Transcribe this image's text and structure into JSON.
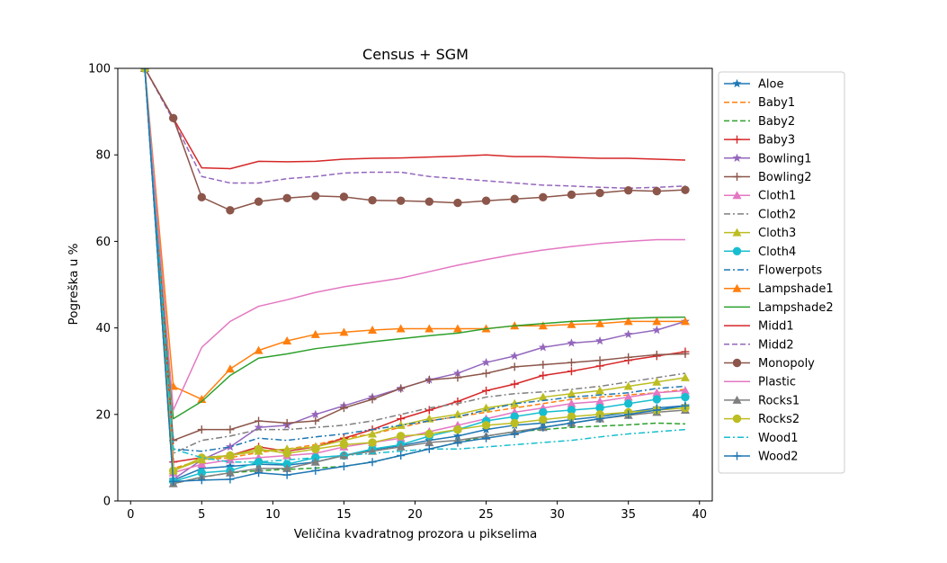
{
  "chart_data": {
    "type": "line",
    "title": "Census + SGM",
    "xlabel": "Veličina kvadratnog prozora u pikselima",
    "ylabel": "Pogreška u %",
    "xlim": [
      -0.9,
      40.9
    ],
    "ylim": [
      0,
      100
    ],
    "xticks": [
      0,
      5,
      10,
      15,
      20,
      25,
      30,
      35,
      40
    ],
    "yticks": [
      0,
      20,
      40,
      60,
      80,
      100
    ],
    "grid": false,
    "legend_position": "right",
    "x": [
      1,
      3,
      5,
      7,
      9,
      11,
      13,
      15,
      17,
      19,
      21,
      23,
      25,
      27,
      29,
      31,
      33,
      35,
      37,
      39
    ],
    "series": [
      {
        "name": "Aloe",
        "color": "#1f77b4",
        "linestyle": "solid",
        "marker": "star",
        "values": [
          100,
          4.8,
          7.5,
          8.0,
          8.5,
          8.3,
          9.0,
          10.5,
          11.8,
          12.8,
          14.0,
          15.0,
          16.5,
          17.5,
          18.0,
          18.8,
          19.5,
          20.5,
          21.5,
          22.0
        ]
      },
      {
        "name": "Baby1",
        "color": "#ff7f0e",
        "linestyle": "dashed",
        "marker": "none",
        "values": [
          100,
          7.5,
          9.5,
          10.0,
          11.2,
          12.0,
          13.0,
          14.5,
          15.5,
          17.0,
          18.5,
          19.5,
          20.5,
          21.5,
          22.5,
          23.5,
          24.0,
          24.5,
          25.0,
          25.8
        ]
      },
      {
        "name": "Baby2",
        "color": "#2ca02c",
        "linestyle": "dashed",
        "marker": "none",
        "values": [
          100,
          4.0,
          5.5,
          6.5,
          7.0,
          7.3,
          7.6,
          8.0,
          9.0,
          10.5,
          12.0,
          13.5,
          15.0,
          16.0,
          16.5,
          17.0,
          17.3,
          17.6,
          18.0,
          17.8
        ]
      },
      {
        "name": "Baby3",
        "color": "#d62728",
        "linestyle": "solid",
        "marker": "plus",
        "values": [
          100,
          9.0,
          10.0,
          10.5,
          12.5,
          11.5,
          12.5,
          14.5,
          16.5,
          19.0,
          21.0,
          23.0,
          25.5,
          27.0,
          29.0,
          30.0,
          31.2,
          32.5,
          33.5,
          34.5
        ]
      },
      {
        "name": "Bowling1",
        "color": "#9467bd",
        "linestyle": "solid",
        "marker": "star",
        "values": [
          100,
          5.0,
          9.5,
          12.5,
          17.0,
          17.5,
          20.0,
          22.0,
          24.0,
          26.0,
          28.0,
          29.5,
          32.0,
          33.5,
          35.5,
          36.5,
          37.0,
          38.5,
          39.5,
          41.5
        ]
      },
      {
        "name": "Bowling2",
        "color": "#8c564b",
        "linestyle": "solid",
        "marker": "plus",
        "values": [
          100,
          14.0,
          16.5,
          16.5,
          18.5,
          18.0,
          18.5,
          21.5,
          23.5,
          26.0,
          28.0,
          28.5,
          29.5,
          31.0,
          31.5,
          32.0,
          32.5,
          33.2,
          33.8,
          34.0
        ]
      },
      {
        "name": "Cloth1",
        "color": "#e377c2",
        "linestyle": "solid",
        "marker": "triangle",
        "values": [
          100,
          6.5,
          8.5,
          9.5,
          10.0,
          10.5,
          11.0,
          12.5,
          13.5,
          14.5,
          16.0,
          17.5,
          19.0,
          20.5,
          21.5,
          22.5,
          23.0,
          24.0,
          25.0,
          25.5
        ]
      },
      {
        "name": "Cloth2",
        "color": "#7f7f7f",
        "linestyle": "dashdot",
        "marker": "none",
        "values": [
          100,
          11.0,
          14.0,
          15.0,
          16.5,
          16.5,
          17.0,
          17.5,
          18.5,
          20.0,
          21.5,
          22.5,
          24.0,
          24.8,
          25.2,
          25.8,
          26.5,
          27.5,
          28.5,
          29.5
        ]
      },
      {
        "name": "Cloth3",
        "color": "#bcbd22",
        "linestyle": "solid",
        "marker": "triangle",
        "values": [
          100,
          7.0,
          9.5,
          10.5,
          11.5,
          12.0,
          12.5,
          14.0,
          15.5,
          17.5,
          19.0,
          20.0,
          21.5,
          22.5,
          24.0,
          24.8,
          25.5,
          26.5,
          27.5,
          28.5
        ]
      },
      {
        "name": "Cloth4",
        "color": "#17becf",
        "linestyle": "solid",
        "marker": "circle",
        "values": [
          100,
          4.5,
          6.5,
          7.0,
          9.0,
          8.5,
          10.0,
          10.5,
          12.0,
          13.0,
          15.0,
          16.5,
          18.5,
          19.5,
          20.5,
          21.0,
          21.5,
          22.5,
          23.5,
          24.0
        ]
      },
      {
        "name": "Flowerpots",
        "color": "#1f77b4",
        "linestyle": "dashdot",
        "marker": "none",
        "values": [
          100,
          12.0,
          11.5,
          12.5,
          14.5,
          14.0,
          14.8,
          15.5,
          16.5,
          17.5,
          18.5,
          19.5,
          21.0,
          22.5,
          23.2,
          24.0,
          24.5,
          25.0,
          26.0,
          26.5
        ]
      },
      {
        "name": "Lampshade1",
        "color": "#ff7f0e",
        "linestyle": "solid",
        "marker": "triangle",
        "values": [
          100,
          26.5,
          23.5,
          30.5,
          34.8,
          37.0,
          38.5,
          39.0,
          39.5,
          39.8,
          39.8,
          39.8,
          39.8,
          40.5,
          40.5,
          40.8,
          41.0,
          41.5,
          41.5,
          41.5
        ]
      },
      {
        "name": "Lampshade2",
        "color": "#2ca02c",
        "linestyle": "solid",
        "marker": "none",
        "values": [
          100,
          19.0,
          23.0,
          29.0,
          33.0,
          34.0,
          35.2,
          36.0,
          36.8,
          37.5,
          38.2,
          38.8,
          39.8,
          40.5,
          41.0,
          41.5,
          41.8,
          42.2,
          42.4,
          42.5
        ]
      },
      {
        "name": "Midd1",
        "color": "#d62728",
        "linestyle": "solid",
        "marker": "none",
        "values": [
          100,
          88.5,
          77.0,
          76.8,
          78.5,
          78.4,
          78.5,
          79.0,
          79.2,
          79.3,
          79.5,
          79.7,
          80.0,
          79.6,
          79.6,
          79.4,
          79.2,
          79.2,
          79.0,
          78.8
        ]
      },
      {
        "name": "Midd2",
        "color": "#9467bd",
        "linestyle": "dashed",
        "marker": "none",
        "values": [
          100,
          88.0,
          75.0,
          73.5,
          73.5,
          74.5,
          75.0,
          75.8,
          76.0,
          76.0,
          75.0,
          74.5,
          74.0,
          73.5,
          73.0,
          72.8,
          72.5,
          72.3,
          72.5,
          72.8
        ]
      },
      {
        "name": "Monopoly",
        "color": "#8c564b",
        "linestyle": "solid",
        "marker": "circle",
        "values": [
          100,
          88.5,
          70.2,
          67.2,
          69.2,
          70.0,
          70.5,
          70.3,
          69.5,
          69.4,
          69.2,
          68.9,
          69.4,
          69.8,
          70.2,
          70.8,
          71.2,
          71.8,
          71.6,
          71.9
        ]
      },
      {
        "name": "Plastic",
        "color": "#e377c2",
        "linestyle": "solid",
        "marker": "none",
        "values": [
          100,
          21.0,
          35.5,
          41.5,
          45.0,
          46.5,
          48.2,
          49.5,
          50.5,
          51.5,
          53.0,
          54.5,
          55.8,
          57.0,
          58.0,
          58.8,
          59.5,
          60.0,
          60.4,
          60.4
        ]
      },
      {
        "name": "Rocks1",
        "color": "#7f7f7f",
        "linestyle": "solid",
        "marker": "triangle",
        "values": [
          100,
          4.0,
          5.5,
          6.5,
          7.5,
          7.5,
          9.0,
          10.5,
          11.5,
          12.5,
          13.5,
          14.0,
          15.0,
          16.0,
          17.0,
          18.0,
          19.0,
          19.8,
          20.5,
          21.0
        ]
      },
      {
        "name": "Rocks2",
        "color": "#bcbd22",
        "linestyle": "solid",
        "marker": "circle",
        "values": [
          100,
          7.0,
          10.0,
          10.5,
          12.0,
          11.0,
          12.0,
          13.0,
          13.5,
          15.0,
          15.5,
          16.5,
          17.5,
          18.0,
          18.8,
          19.5,
          20.0,
          20.5,
          21.0,
          21.5
        ]
      },
      {
        "name": "Wood1",
        "color": "#17becf",
        "linestyle": "dashdot",
        "marker": "none",
        "values": [
          100,
          12.0,
          10.0,
          9.0,
          9.0,
          9.5,
          10.0,
          10.5,
          11.0,
          11.5,
          12.0,
          12.0,
          12.5,
          13.0,
          13.5,
          14.0,
          14.8,
          15.5,
          16.0,
          16.5
        ]
      },
      {
        "name": "Wood2",
        "color": "#1f77b4",
        "linestyle": "solid",
        "marker": "plus",
        "values": [
          100,
          4.5,
          4.8,
          5.0,
          6.5,
          6.0,
          7.0,
          8.0,
          9.0,
          10.5,
          12.0,
          13.5,
          14.5,
          15.5,
          17.0,
          18.0,
          19.0,
          20.0,
          21.0,
          22.0
        ]
      }
    ]
  }
}
